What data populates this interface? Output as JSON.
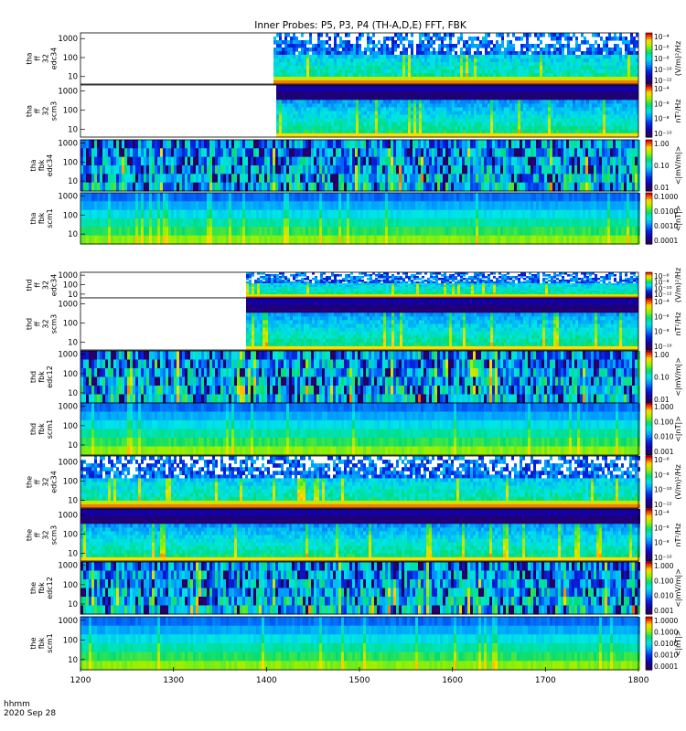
{
  "chart_data": {
    "type": "heatmap",
    "title": "Inner Probes: P5, P3, P4 (TH-A,D,E) FFT, FBK",
    "x_axis": {
      "range": [
        1200,
        1800
      ],
      "ticks": [
        "1200",
        "1300",
        "1400",
        "1500",
        "1600",
        "1700",
        "1800"
      ],
      "label_line1": "hhmm",
      "label_line2": "2020 Sep 28"
    },
    "colormap": "rainbow (violet → blue → cyan → green → yellow → red)",
    "panels": [
      {
        "id": "tha-ff32-edc34",
        "labels": [
          "tha",
          "ff",
          "32",
          "edc34"
        ],
        "yticks": [
          "1000",
          "100",
          "10"
        ],
        "ylim": [
          4,
          2000
        ],
        "kind": "fft_e",
        "data_start": 1408,
        "cb_ticks": [
          "10⁻⁴",
          "10⁻⁶",
          "10⁻⁸",
          "10⁻¹⁰",
          "10⁻¹²"
        ],
        "cb_label": "(V/m)²/Hz"
      },
      {
        "id": "tha-ff32-scm3",
        "labels": [
          "tha",
          "ff",
          "32",
          "scm3"
        ],
        "yticks": [
          "1000",
          "100",
          "10"
        ],
        "ylim": [
          4,
          2000
        ],
        "kind": "fft_b",
        "data_start": 1410,
        "cb_ticks": [
          "10⁻⁴",
          "10⁻⁶",
          "10⁻⁸",
          "10⁻¹⁰"
        ],
        "cb_label": "nT²/Hz"
      },
      {
        "id": "tha-fbk-edc34",
        "labels": [
          "tha",
          "fbk",
          "edc34"
        ],
        "yticks": [
          "1000",
          "100",
          "10"
        ],
        "ylim": [
          3,
          1500
        ],
        "kind": "fbk_e",
        "data_start": 1200,
        "cb_ticks": [
          "1.00",
          "0.10",
          "0.01"
        ],
        "cb_label": "<|mV/m|>"
      },
      {
        "id": "tha-fbk-scm1",
        "labels": [
          "tha",
          "fbk",
          "scm1"
        ],
        "yticks": [
          "1000",
          "100",
          "10"
        ],
        "ylim": [
          3,
          1500
        ],
        "kind": "fbk_b",
        "data_start": 1200,
        "cb_ticks": [
          "0.1000",
          "0.0100",
          "0.0010",
          "0.0001"
        ],
        "cb_label": "<|nT|>"
      },
      {
        "id": "thd-ff32-edc34",
        "labels": [
          "thd",
          "ff",
          "32",
          "edc34"
        ],
        "yticks": [
          "1000",
          "100",
          "10"
        ],
        "ylim": [
          4,
          2000
        ],
        "kind": "fft_e",
        "data_start": 1378,
        "cb_ticks": [
          "10⁻⁶",
          "10⁻⁸",
          "10⁻¹⁰",
          "10⁻¹²"
        ],
        "cb_label": "(V/m)²/Hz"
      },
      {
        "id": "thd-ff32-scm3",
        "labels": [
          "thd",
          "ff",
          "32",
          "scm3"
        ],
        "yticks": [
          "1000",
          "100",
          "10"
        ],
        "ylim": [
          4,
          2000
        ],
        "kind": "fft_b",
        "data_start": 1378,
        "cb_ticks": [
          "10⁻⁴",
          "10⁻⁶",
          "10⁻⁸",
          "10⁻¹⁰"
        ],
        "cb_label": "nT²/Hz"
      },
      {
        "id": "thd-fbk-edc12",
        "labels": [
          "thd",
          "fbk",
          "edc12"
        ],
        "yticks": [
          "1000",
          "100",
          "10"
        ],
        "ylim": [
          3,
          1500
        ],
        "kind": "fbk_e",
        "data_start": 1200,
        "cb_ticks": [
          "1.00",
          "0.10",
          "0.01"
        ],
        "cb_label": "<|mV/m|>"
      },
      {
        "id": "thd-fbk-scm1",
        "labels": [
          "thd",
          "fbk",
          "scm1"
        ],
        "yticks": [
          "1000",
          "100",
          "10"
        ],
        "ylim": [
          3,
          1500
        ],
        "kind": "fbk_b",
        "data_start": 1200,
        "cb_ticks": [
          "1.000",
          "0.100",
          "0.010",
          "0.001"
        ],
        "cb_label": "<|nT|>"
      },
      {
        "id": "the-ff32-edc34",
        "labels": [
          "the",
          "ff",
          "32",
          "edc34"
        ],
        "yticks": [
          "1000",
          "100",
          "10"
        ],
        "ylim": [
          4,
          2000
        ],
        "kind": "fft_e",
        "data_start": 1200,
        "cb_ticks": [
          "10⁻⁶",
          "10⁻⁸",
          "10⁻¹⁰",
          "10⁻¹²"
        ],
        "cb_label": "(V/m)²/Hz"
      },
      {
        "id": "the-ff32-scm3",
        "labels": [
          "the",
          "ff",
          "32",
          "scm3"
        ],
        "yticks": [
          "1000",
          "100",
          "10"
        ],
        "ylim": [
          4,
          2000
        ],
        "kind": "fft_b",
        "data_start": 1200,
        "cb_ticks": [
          "10⁻⁴",
          "10⁻⁶",
          "10⁻⁸",
          "10⁻¹⁰"
        ],
        "cb_label": "nT²/Hz"
      },
      {
        "id": "the-fbk-edc12",
        "labels": [
          "the",
          "fbk",
          "edc12"
        ],
        "yticks": [
          "1000",
          "100",
          "10"
        ],
        "ylim": [
          3,
          1500
        ],
        "kind": "fbk_e",
        "data_start": 1200,
        "cb_ticks": [
          "1.000",
          "0.100",
          "0.010",
          "0.001"
        ],
        "cb_label": "<|mV/m|>"
      },
      {
        "id": "the-fbk-scm1",
        "labels": [
          "the",
          "fbk",
          "scm1"
        ],
        "yticks": [
          "1000",
          "100",
          "10"
        ],
        "ylim": [
          3,
          1500
        ],
        "kind": "fbk_b",
        "data_start": 1200,
        "cb_ticks": [
          "1.0000",
          "0.1000",
          "0.0100",
          "0.0010",
          "0.0001"
        ],
        "cb_label": "<|nT|>"
      }
    ]
  }
}
